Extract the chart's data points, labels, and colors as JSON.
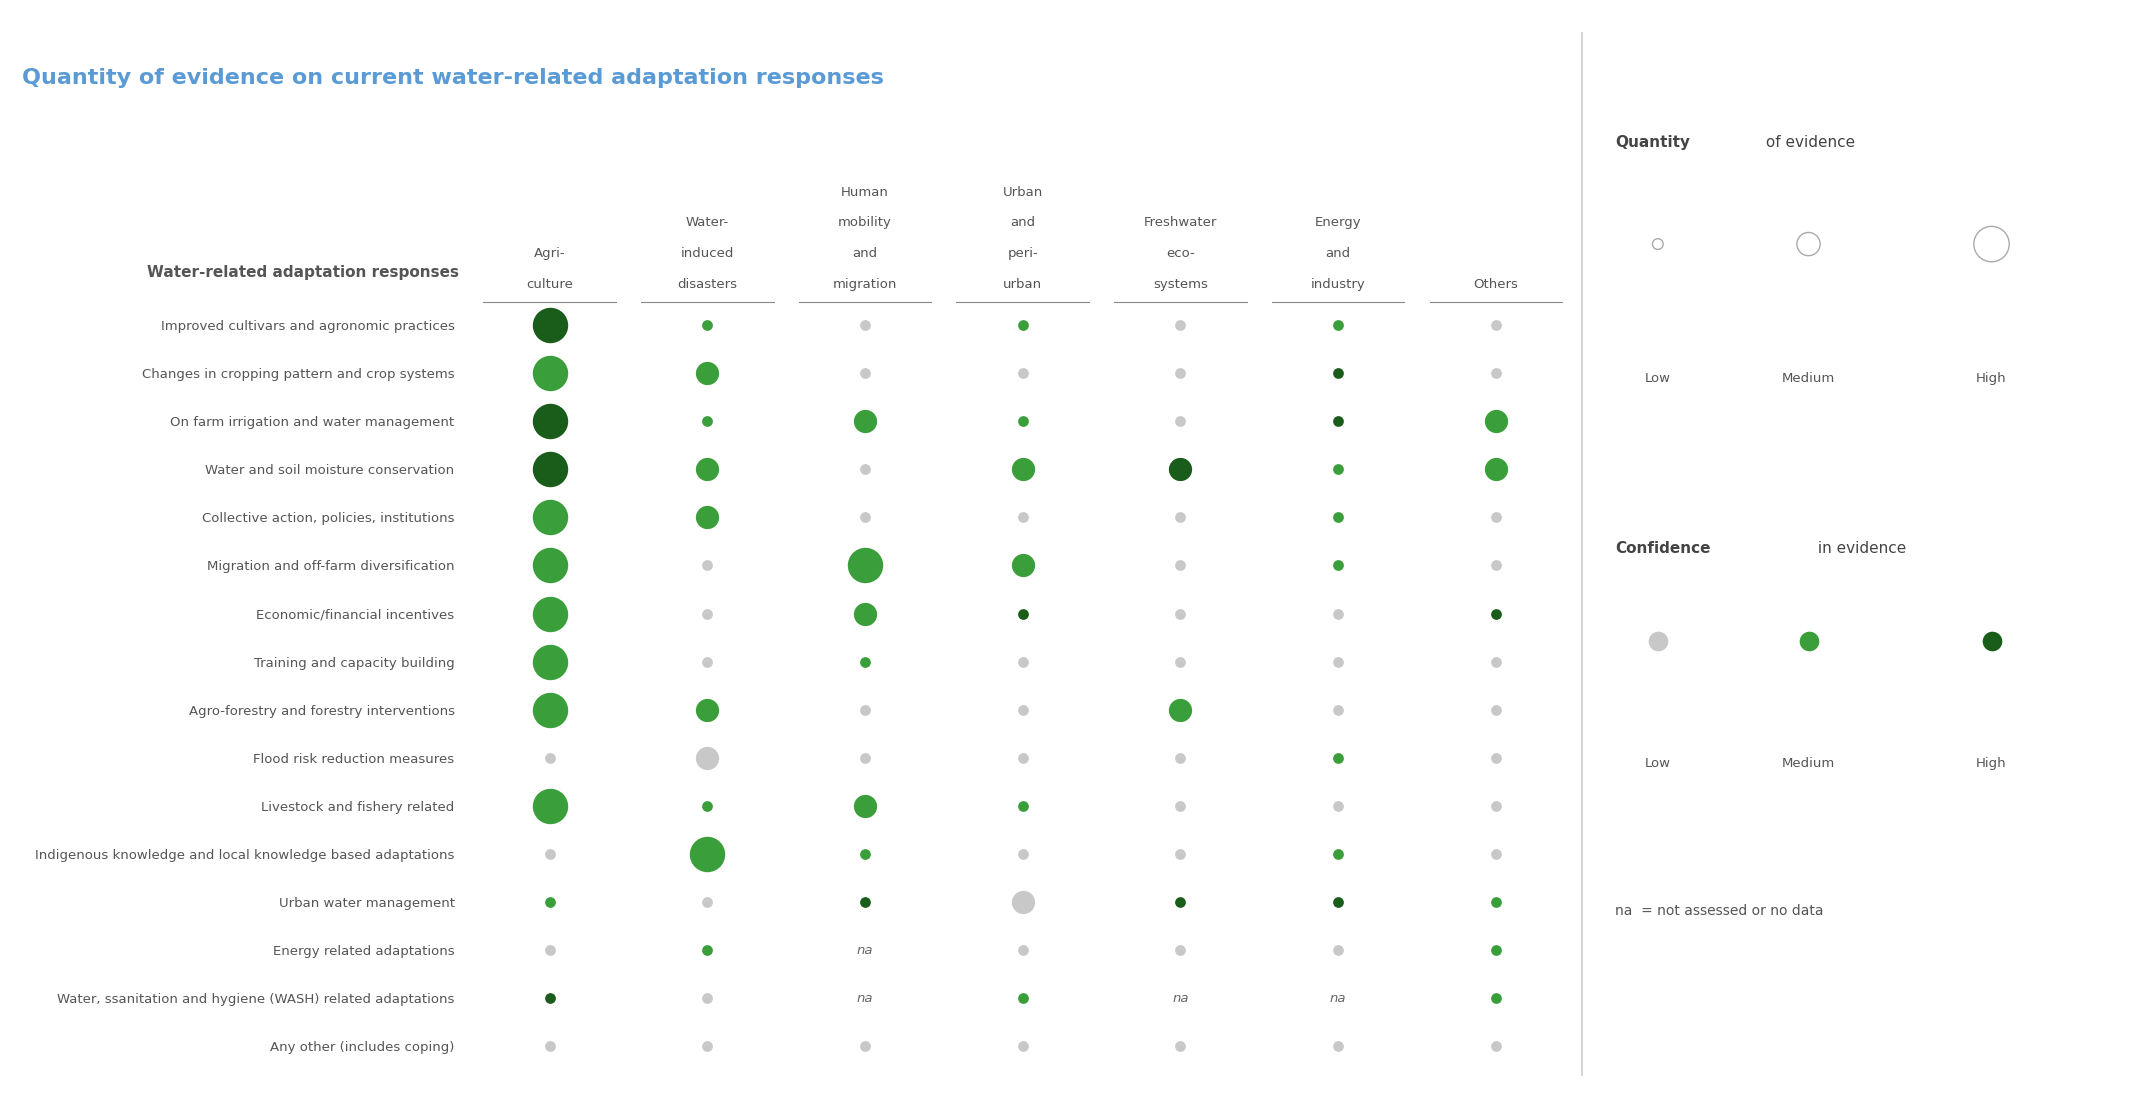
{
  "title": "Quantity of evidence on current water-related adaptation responses",
  "title_color": "#5b9bd5",
  "background_color": "#ffffff",
  "columns": [
    "Agri-\nculture",
    "Water-\ninduced\ndisasters",
    "Human\nmobility\nand\nmigration",
    "Urban\nand\nperi-\nurban",
    "Freshwater\neco-\nsystems",
    "Energy\nand\nindustry",
    "Others"
  ],
  "rows": [
    "Improved cultivars and agronomic practices",
    "Changes in cropping pattern and crop systems",
    "On farm irrigation and water management",
    "Water and soil moisture conservation",
    "Collective action, policies, institutions",
    "Migration and off-farm diversification",
    "Economic/financial incentives",
    "Training and capacity building",
    "Agro-forestry and forestry interventions",
    "Flood risk reduction measures",
    "Livestock and fishery related",
    "Indigenous knowledge and local knowledge based adaptations",
    "Urban water management",
    "Energy related adaptations",
    "Water, ssanitation and hygiene (WASH) related adaptations",
    "Any other (includes coping)"
  ],
  "header_label": "Water-related adaptation responses",
  "legend_quantity_bold": "Quantity",
  "legend_quantity_rest": " of evidence",
  "legend_confidence_bold": "Confidence",
  "legend_confidence_rest": " in evidence",
  "na_label": "na  = not assessed or no data",
  "dot_color_low_conf": "#c8c8c8",
  "dot_color_med_conf": "#3a9e3a",
  "dot_color_high_conf": "#1a5c1a",
  "dot_size_low": 60,
  "dot_size_med": 280,
  "dot_size_high": 650,
  "cells": [
    {
      "row": 0,
      "col": 0,
      "size": "high",
      "conf": "high",
      "na": false
    },
    {
      "row": 0,
      "col": 1,
      "size": "low",
      "conf": "med",
      "na": false
    },
    {
      "row": 0,
      "col": 2,
      "size": "low",
      "conf": "low",
      "na": false
    },
    {
      "row": 0,
      "col": 3,
      "size": "low",
      "conf": "med",
      "na": false
    },
    {
      "row": 0,
      "col": 4,
      "size": "low",
      "conf": "low",
      "na": false
    },
    {
      "row": 0,
      "col": 5,
      "size": "low",
      "conf": "med",
      "na": false
    },
    {
      "row": 0,
      "col": 6,
      "size": "low",
      "conf": "low",
      "na": false
    },
    {
      "row": 1,
      "col": 0,
      "size": "high",
      "conf": "med",
      "na": false
    },
    {
      "row": 1,
      "col": 1,
      "size": "med",
      "conf": "med",
      "na": false
    },
    {
      "row": 1,
      "col": 2,
      "size": "low",
      "conf": "low",
      "na": false
    },
    {
      "row": 1,
      "col": 3,
      "size": "low",
      "conf": "low",
      "na": false
    },
    {
      "row": 1,
      "col": 4,
      "size": "low",
      "conf": "low",
      "na": false
    },
    {
      "row": 1,
      "col": 5,
      "size": "low",
      "conf": "high",
      "na": false
    },
    {
      "row": 1,
      "col": 6,
      "size": "low",
      "conf": "low",
      "na": false
    },
    {
      "row": 2,
      "col": 0,
      "size": "high",
      "conf": "high",
      "na": false
    },
    {
      "row": 2,
      "col": 1,
      "size": "low",
      "conf": "med",
      "na": false
    },
    {
      "row": 2,
      "col": 2,
      "size": "med",
      "conf": "med",
      "na": false
    },
    {
      "row": 2,
      "col": 3,
      "size": "low",
      "conf": "med",
      "na": false
    },
    {
      "row": 2,
      "col": 4,
      "size": "low",
      "conf": "low",
      "na": false
    },
    {
      "row": 2,
      "col": 5,
      "size": "low",
      "conf": "high",
      "na": false
    },
    {
      "row": 2,
      "col": 6,
      "size": "med",
      "conf": "med",
      "na": false
    },
    {
      "row": 3,
      "col": 0,
      "size": "high",
      "conf": "high",
      "na": false
    },
    {
      "row": 3,
      "col": 1,
      "size": "med",
      "conf": "med",
      "na": false
    },
    {
      "row": 3,
      "col": 2,
      "size": "low",
      "conf": "low",
      "na": false
    },
    {
      "row": 3,
      "col": 3,
      "size": "med",
      "conf": "med",
      "na": false
    },
    {
      "row": 3,
      "col": 4,
      "size": "med",
      "conf": "high",
      "na": false
    },
    {
      "row": 3,
      "col": 5,
      "size": "low",
      "conf": "med",
      "na": false
    },
    {
      "row": 3,
      "col": 6,
      "size": "med",
      "conf": "med",
      "na": false
    },
    {
      "row": 4,
      "col": 0,
      "size": "high",
      "conf": "med",
      "na": false
    },
    {
      "row": 4,
      "col": 1,
      "size": "med",
      "conf": "med",
      "na": false
    },
    {
      "row": 4,
      "col": 2,
      "size": "low",
      "conf": "low",
      "na": false
    },
    {
      "row": 4,
      "col": 3,
      "size": "low",
      "conf": "low",
      "na": false
    },
    {
      "row": 4,
      "col": 4,
      "size": "low",
      "conf": "low",
      "na": false
    },
    {
      "row": 4,
      "col": 5,
      "size": "low",
      "conf": "med",
      "na": false
    },
    {
      "row": 4,
      "col": 6,
      "size": "low",
      "conf": "low",
      "na": false
    },
    {
      "row": 5,
      "col": 0,
      "size": "high",
      "conf": "med",
      "na": false
    },
    {
      "row": 5,
      "col": 1,
      "size": "low",
      "conf": "low",
      "na": false
    },
    {
      "row": 5,
      "col": 2,
      "size": "high",
      "conf": "med",
      "na": false
    },
    {
      "row": 5,
      "col": 3,
      "size": "med",
      "conf": "med",
      "na": false
    },
    {
      "row": 5,
      "col": 4,
      "size": "low",
      "conf": "low",
      "na": false
    },
    {
      "row": 5,
      "col": 5,
      "size": "low",
      "conf": "med",
      "na": false
    },
    {
      "row": 5,
      "col": 6,
      "size": "low",
      "conf": "low",
      "na": false
    },
    {
      "row": 6,
      "col": 0,
      "size": "high",
      "conf": "med",
      "na": false
    },
    {
      "row": 6,
      "col": 1,
      "size": "low",
      "conf": "low",
      "na": false
    },
    {
      "row": 6,
      "col": 2,
      "size": "med",
      "conf": "med",
      "na": false
    },
    {
      "row": 6,
      "col": 3,
      "size": "low",
      "conf": "high",
      "na": false
    },
    {
      "row": 6,
      "col": 4,
      "size": "low",
      "conf": "low",
      "na": false
    },
    {
      "row": 6,
      "col": 5,
      "size": "low",
      "conf": "low",
      "na": false
    },
    {
      "row": 6,
      "col": 6,
      "size": "low",
      "conf": "high",
      "na": false
    },
    {
      "row": 7,
      "col": 0,
      "size": "high",
      "conf": "med",
      "na": false
    },
    {
      "row": 7,
      "col": 1,
      "size": "low",
      "conf": "low",
      "na": false
    },
    {
      "row": 7,
      "col": 2,
      "size": "low",
      "conf": "med",
      "na": false
    },
    {
      "row": 7,
      "col": 3,
      "size": "low",
      "conf": "low",
      "na": false
    },
    {
      "row": 7,
      "col": 4,
      "size": "low",
      "conf": "low",
      "na": false
    },
    {
      "row": 7,
      "col": 5,
      "size": "low",
      "conf": "low",
      "na": false
    },
    {
      "row": 7,
      "col": 6,
      "size": "low",
      "conf": "low",
      "na": false
    },
    {
      "row": 8,
      "col": 0,
      "size": "high",
      "conf": "med",
      "na": false
    },
    {
      "row": 8,
      "col": 1,
      "size": "med",
      "conf": "med",
      "na": false
    },
    {
      "row": 8,
      "col": 2,
      "size": "low",
      "conf": "low",
      "na": false
    },
    {
      "row": 8,
      "col": 3,
      "size": "low",
      "conf": "low",
      "na": false
    },
    {
      "row": 8,
      "col": 4,
      "size": "med",
      "conf": "med",
      "na": false
    },
    {
      "row": 8,
      "col": 5,
      "size": "low",
      "conf": "low",
      "na": false
    },
    {
      "row": 8,
      "col": 6,
      "size": "low",
      "conf": "low",
      "na": false
    },
    {
      "row": 9,
      "col": 0,
      "size": "low",
      "conf": "low",
      "na": false
    },
    {
      "row": 9,
      "col": 1,
      "size": "med",
      "conf": "low",
      "na": false
    },
    {
      "row": 9,
      "col": 2,
      "size": "low",
      "conf": "low",
      "na": false
    },
    {
      "row": 9,
      "col": 3,
      "size": "low",
      "conf": "low",
      "na": false
    },
    {
      "row": 9,
      "col": 4,
      "size": "low",
      "conf": "low",
      "na": false
    },
    {
      "row": 9,
      "col": 5,
      "size": "low",
      "conf": "med",
      "na": false
    },
    {
      "row": 9,
      "col": 6,
      "size": "low",
      "conf": "low",
      "na": false
    },
    {
      "row": 10,
      "col": 0,
      "size": "high",
      "conf": "med",
      "na": false
    },
    {
      "row": 10,
      "col": 1,
      "size": "low",
      "conf": "med",
      "na": false
    },
    {
      "row": 10,
      "col": 2,
      "size": "med",
      "conf": "med",
      "na": false
    },
    {
      "row": 10,
      "col": 3,
      "size": "low",
      "conf": "med",
      "na": false
    },
    {
      "row": 10,
      "col": 4,
      "size": "low",
      "conf": "low",
      "na": false
    },
    {
      "row": 10,
      "col": 5,
      "size": "low",
      "conf": "low",
      "na": false
    },
    {
      "row": 10,
      "col": 6,
      "size": "low",
      "conf": "low",
      "na": false
    },
    {
      "row": 11,
      "col": 0,
      "size": "low",
      "conf": "low",
      "na": false
    },
    {
      "row": 11,
      "col": 1,
      "size": "high",
      "conf": "med",
      "na": false
    },
    {
      "row": 11,
      "col": 2,
      "size": "low",
      "conf": "med",
      "na": false
    },
    {
      "row": 11,
      "col": 3,
      "size": "low",
      "conf": "low",
      "na": false
    },
    {
      "row": 11,
      "col": 4,
      "size": "low",
      "conf": "low",
      "na": false
    },
    {
      "row": 11,
      "col": 5,
      "size": "low",
      "conf": "med",
      "na": false
    },
    {
      "row": 11,
      "col": 6,
      "size": "low",
      "conf": "low",
      "na": false
    },
    {
      "row": 12,
      "col": 0,
      "size": "low",
      "conf": "med",
      "na": false
    },
    {
      "row": 12,
      "col": 1,
      "size": "low",
      "conf": "low",
      "na": false
    },
    {
      "row": 12,
      "col": 2,
      "size": "low",
      "conf": "high",
      "na": false
    },
    {
      "row": 12,
      "col": 3,
      "size": "med",
      "conf": "low",
      "na": false
    },
    {
      "row": 12,
      "col": 4,
      "size": "low",
      "conf": "high",
      "na": false
    },
    {
      "row": 12,
      "col": 5,
      "size": "low",
      "conf": "high",
      "na": false
    },
    {
      "row": 12,
      "col": 6,
      "size": "low",
      "conf": "med",
      "na": false
    },
    {
      "row": 13,
      "col": 0,
      "size": "low",
      "conf": "low",
      "na": false
    },
    {
      "row": 13,
      "col": 1,
      "size": "low",
      "conf": "med",
      "na": false
    },
    {
      "row": 13,
      "col": 2,
      "size": "none",
      "conf": "none",
      "na": true
    },
    {
      "row": 13,
      "col": 3,
      "size": "low",
      "conf": "low",
      "na": false
    },
    {
      "row": 13,
      "col": 4,
      "size": "low",
      "conf": "low",
      "na": false
    },
    {
      "row": 13,
      "col": 5,
      "size": "low",
      "conf": "low",
      "na": false
    },
    {
      "row": 13,
      "col": 6,
      "size": "low",
      "conf": "med",
      "na": false
    },
    {
      "row": 14,
      "col": 0,
      "size": "low",
      "conf": "high",
      "na": false
    },
    {
      "row": 14,
      "col": 1,
      "size": "low",
      "conf": "low",
      "na": false
    },
    {
      "row": 14,
      "col": 2,
      "size": "none",
      "conf": "none",
      "na": true
    },
    {
      "row": 14,
      "col": 3,
      "size": "low",
      "conf": "med",
      "na": false
    },
    {
      "row": 14,
      "col": 4,
      "size": "none",
      "conf": "none",
      "na": true
    },
    {
      "row": 14,
      "col": 5,
      "size": "none",
      "conf": "none",
      "na": true
    },
    {
      "row": 14,
      "col": 6,
      "size": "low",
      "conf": "med",
      "na": false
    },
    {
      "row": 15,
      "col": 0,
      "size": "low",
      "conf": "low",
      "na": false
    },
    {
      "row": 15,
      "col": 1,
      "size": "low",
      "conf": "low",
      "na": false
    },
    {
      "row": 15,
      "col": 2,
      "size": "low",
      "conf": "low",
      "na": false
    },
    {
      "row": 15,
      "col": 3,
      "size": "low",
      "conf": "low",
      "na": false
    },
    {
      "row": 15,
      "col": 4,
      "size": "low",
      "conf": "low",
      "na": false
    },
    {
      "row": 15,
      "col": 5,
      "size": "low",
      "conf": "low",
      "na": false
    },
    {
      "row": 15,
      "col": 6,
      "size": "low",
      "conf": "low",
      "na": false
    }
  ]
}
